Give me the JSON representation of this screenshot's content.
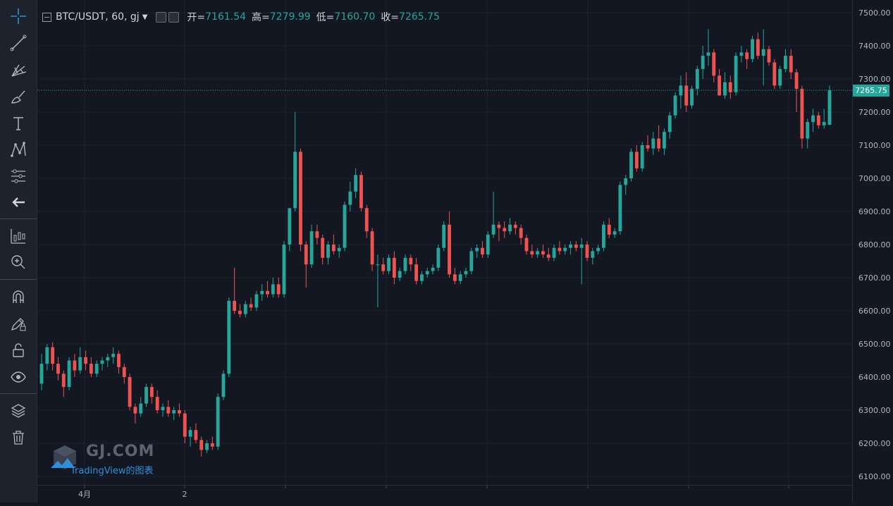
{
  "legend": {
    "symbol": "BTC/USDT, 60, gj",
    "open_label": "开=",
    "open_value": "7161.54",
    "high_label": "高=",
    "high_value": "7279.99",
    "low_label": "低=",
    "low_value": "7160.70",
    "close_label": "收=",
    "close_value": "7265.75"
  },
  "toolbar": {
    "tools": [
      "crosshair-icon",
      "trend-line-icon",
      "pitchfork-icon",
      "brush-icon",
      "text-icon",
      "pattern-icon",
      "prediction-icon",
      "back-arrow-icon",
      "measure-icon",
      "zoom-in-icon",
      "magnet-icon",
      "draw-lock-icon",
      "lock-icon",
      "eye-icon",
      "layers-icon",
      "trash-icon"
    ]
  },
  "watermark": {
    "brand": "GJ.COM",
    "tv_text": "TradingView的图表"
  },
  "last_price": "7265.75",
  "colors": {
    "up": "#26a69a",
    "down": "#ef5350",
    "background": "#131722",
    "grid": "#1e222d"
  },
  "chart_data": {
    "type": "candlestick",
    "title": "BTC/USDT, 60, gj",
    "ylim": [
      6075,
      7525
    ],
    "y_ticks": [
      "7500.00",
      "7400.00",
      "7300.00",
      "7200.00",
      "7100.00",
      "7000.00",
      "6900.00",
      "6800.00",
      "6700.00",
      "6600.00",
      "6500.00",
      "6400.00",
      "6300.00",
      "6200.00",
      "6100.00"
    ],
    "x_tick_labels": [
      "4月",
      "2"
    ],
    "last_price": 7265.75,
    "candles": [
      [
        6380,
        6470,
        6360,
        6440
      ],
      [
        6440,
        6500,
        6420,
        6490
      ],
      [
        6490,
        6505,
        6420,
        6440
      ],
      [
        6440,
        6460,
        6390,
        6410
      ],
      [
        6410,
        6420,
        6340,
        6370
      ],
      [
        6370,
        6460,
        6360,
        6450
      ],
      [
        6450,
        6470,
        6400,
        6420
      ],
      [
        6420,
        6490,
        6410,
        6460
      ],
      [
        6460,
        6480,
        6420,
        6440
      ],
      [
        6440,
        6460,
        6400,
        6410
      ],
      [
        6410,
        6450,
        6400,
        6440
      ],
      [
        6440,
        6460,
        6420,
        6450
      ],
      [
        6450,
        6470,
        6430,
        6460
      ],
      [
        6460,
        6490,
        6440,
        6470
      ],
      [
        6470,
        6480,
        6410,
        6430
      ],
      [
        6430,
        6440,
        6380,
        6400
      ],
      [
        6400,
        6410,
        6300,
        6310
      ],
      [
        6310,
        6320,
        6260,
        6290
      ],
      [
        6290,
        6340,
        6280,
        6320
      ],
      [
        6320,
        6380,
        6310,
        6370
      ],
      [
        6370,
        6380,
        6320,
        6340
      ],
      [
        6340,
        6360,
        6290,
        6300
      ],
      [
        6300,
        6320,
        6280,
        6310
      ],
      [
        6310,
        6330,
        6280,
        6290
      ],
      [
        6290,
        6310,
        6270,
        6300
      ],
      [
        6300,
        6320,
        6280,
        6290
      ],
      [
        6290,
        6300,
        6200,
        6220
      ],
      [
        6220,
        6250,
        6190,
        6240
      ],
      [
        6240,
        6260,
        6200,
        6210
      ],
      [
        6210,
        6220,
        6160,
        6180
      ],
      [
        6180,
        6210,
        6170,
        6200
      ],
      [
        6200,
        6220,
        6180,
        6190
      ],
      [
        6190,
        6350,
        6180,
        6340
      ],
      [
        6340,
        6420,
        6330,
        6410
      ],
      [
        6410,
        6640,
        6400,
        6630
      ],
      [
        6630,
        6730,
        6590,
        6600
      ],
      [
        6600,
        6620,
        6580,
        6590
      ],
      [
        6590,
        6630,
        6580,
        6620
      ],
      [
        6620,
        6640,
        6600,
        6610
      ],
      [
        6610,
        6660,
        6600,
        6650
      ],
      [
        6650,
        6680,
        6630,
        6660
      ],
      [
        6660,
        6690,
        6640,
        6650
      ],
      [
        6650,
        6700,
        6640,
        6680
      ],
      [
        6680,
        6700,
        6640,
        6650
      ],
      [
        6650,
        6810,
        6640,
        6800
      ],
      [
        6800,
        6900,
        6780,
        6910
      ],
      [
        6910,
        7200,
        6900,
        7080
      ],
      [
        7080,
        7090,
        6780,
        6800
      ],
      [
        6800,
        6810,
        6670,
        6740
      ],
      [
        6740,
        6860,
        6730,
        6840
      ],
      [
        6840,
        6860,
        6800,
        6820
      ],
      [
        6820,
        6830,
        6740,
        6760
      ],
      [
        6760,
        6810,
        6740,
        6800
      ],
      [
        6800,
        6830,
        6770,
        6780
      ],
      [
        6780,
        6800,
        6760,
        6790
      ],
      [
        6790,
        6930,
        6780,
        6920
      ],
      [
        6920,
        6990,
        6900,
        6960
      ],
      [
        6960,
        7030,
        6940,
        7010
      ],
      [
        7010,
        7020,
        6900,
        6910
      ],
      [
        6910,
        6920,
        6820,
        6840
      ],
      [
        6840,
        6850,
        6720,
        6740
      ],
      [
        6740,
        6770,
        6610,
        6740
      ],
      [
        6740,
        6760,
        6710,
        6720
      ],
      [
        6720,
        6770,
        6710,
        6760
      ],
      [
        6760,
        6780,
        6680,
        6700
      ],
      [
        6700,
        6730,
        6690,
        6720
      ],
      [
        6720,
        6770,
        6710,
        6760
      ],
      [
        6760,
        6770,
        6720,
        6740
      ],
      [
        6740,
        6760,
        6680,
        6690
      ],
      [
        6690,
        6720,
        6680,
        6710
      ],
      [
        6710,
        6730,
        6700,
        6720
      ],
      [
        6720,
        6740,
        6710,
        6730
      ],
      [
        6730,
        6800,
        6720,
        6790
      ],
      [
        6790,
        6870,
        6780,
        6860
      ],
      [
        6860,
        6900,
        6700,
        6710
      ],
      [
        6710,
        6730,
        6680,
        6690
      ],
      [
        6690,
        6720,
        6680,
        6710
      ],
      [
        6710,
        6730,
        6700,
        6720
      ],
      [
        6720,
        6790,
        6710,
        6780
      ],
      [
        6780,
        6800,
        6760,
        6790
      ],
      [
        6790,
        6810,
        6760,
        6770
      ],
      [
        6770,
        6840,
        6760,
        6830
      ],
      [
        6830,
        6960,
        6820,
        6860
      ],
      [
        6860,
        6870,
        6810,
        6850
      ],
      [
        6850,
        6870,
        6820,
        6840
      ],
      [
        6840,
        6880,
        6830,
        6860
      ],
      [
        6860,
        6870,
        6830,
        6850
      ],
      [
        6850,
        6860,
        6800,
        6820
      ],
      [
        6820,
        6830,
        6770,
        6780
      ],
      [
        6780,
        6800,
        6760,
        6770
      ],
      [
        6770,
        6790,
        6760,
        6780
      ],
      [
        6780,
        6800,
        6760,
        6770
      ],
      [
        6770,
        6790,
        6750,
        6760
      ],
      [
        6760,
        6800,
        6750,
        6790
      ],
      [
        6790,
        6810,
        6770,
        6780
      ],
      [
        6780,
        6800,
        6770,
        6790
      ],
      [
        6790,
        6810,
        6770,
        6800
      ],
      [
        6800,
        6810,
        6780,
        6790
      ],
      [
        6790,
        6820,
        6680,
        6800
      ],
      [
        6800,
        6810,
        6750,
        6760
      ],
      [
        6760,
        6790,
        6740,
        6780
      ],
      [
        6780,
        6800,
        6770,
        6790
      ],
      [
        6790,
        6870,
        6780,
        6860
      ],
      [
        6860,
        6880,
        6820,
        6830
      ],
      [
        6830,
        6850,
        6820,
        6840
      ],
      [
        6840,
        6990,
        6830,
        6980
      ],
      [
        6980,
        7010,
        6950,
        7000
      ],
      [
        7000,
        7090,
        6990,
        7080
      ],
      [
        7080,
        7100,
        7020,
        7030
      ],
      [
        7030,
        7110,
        7020,
        7100
      ],
      [
        7100,
        7130,
        7080,
        7090
      ],
      [
        7090,
        7140,
        7070,
        7120
      ],
      [
        7120,
        7160,
        7080,
        7090
      ],
      [
        7090,
        7150,
        7070,
        7140
      ],
      [
        7140,
        7200,
        7120,
        7190
      ],
      [
        7190,
        7260,
        7180,
        7250
      ],
      [
        7250,
        7310,
        7210,
        7280
      ],
      [
        7280,
        7320,
        7200,
        7220
      ],
      [
        7220,
        7280,
        7210,
        7270
      ],
      [
        7270,
        7340,
        7250,
        7330
      ],
      [
        7330,
        7400,
        7300,
        7370
      ],
      [
        7370,
        7450,
        7340,
        7380
      ],
      [
        7380,
        7390,
        7290,
        7310
      ],
      [
        7310,
        7330,
        7260,
        7250
      ],
      [
        7250,
        7320,
        7240,
        7290
      ],
      [
        7290,
        7310,
        7240,
        7260
      ],
      [
        7260,
        7380,
        7250,
        7370
      ],
      [
        7370,
        7400,
        7350,
        7380
      ],
      [
        7380,
        7390,
        7330,
        7360
      ],
      [
        7360,
        7430,
        7350,
        7420
      ],
      [
        7420,
        7440,
        7360,
        7370
      ],
      [
        7370,
        7450,
        7280,
        7390
      ],
      [
        7390,
        7400,
        7340,
        7350
      ],
      [
        7350,
        7360,
        7270,
        7280
      ],
      [
        7280,
        7340,
        7270,
        7330
      ],
      [
        7330,
        7390,
        7320,
        7370
      ],
      [
        7370,
        7390,
        7300,
        7320
      ],
      [
        7320,
        7330,
        7200,
        7270
      ],
      [
        7270,
        7280,
        7090,
        7120
      ],
      [
        7120,
        7180,
        7090,
        7170
      ],
      [
        7170,
        7210,
        7140,
        7190
      ],
      [
        7190,
        7200,
        7150,
        7160
      ],
      [
        7160,
        7210,
        7150,
        7170
      ],
      [
        7161.54,
        7279.99,
        7160.7,
        7265.75
      ]
    ]
  }
}
